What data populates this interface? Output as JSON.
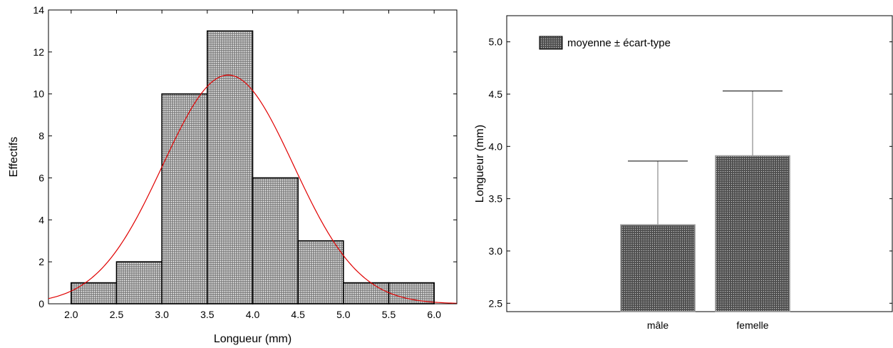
{
  "chart_data": [
    {
      "type": "bar",
      "xlabel": "Longueur (mm)",
      "ylabel": "Effectifs",
      "xlim": [
        1.75,
        6.25
      ],
      "ylim": [
        0,
        14
      ],
      "xticks": [
        "2.0",
        "2.5",
        "3.0",
        "3.5",
        "4.0",
        "4.5",
        "5.0",
        "5.5",
        "6.0"
      ],
      "yticks": [
        "0",
        "2",
        "4",
        "6",
        "8",
        "10",
        "12",
        "14"
      ],
      "bins": [
        {
          "from": 2.0,
          "to": 2.5,
          "value": 1
        },
        {
          "from": 2.5,
          "to": 3.0,
          "value": 2
        },
        {
          "from": 3.0,
          "to": 3.5,
          "value": 10
        },
        {
          "from": 3.5,
          "to": 4.0,
          "value": 13
        },
        {
          "from": 4.0,
          "to": 4.5,
          "value": 6
        },
        {
          "from": 4.5,
          "to": 5.0,
          "value": 3
        },
        {
          "from": 5.0,
          "to": 5.5,
          "value": 1
        },
        {
          "from": 5.5,
          "to": 6.0,
          "value": 1
        }
      ],
      "fit_curve": {
        "type": "normal",
        "mean": 3.73,
        "sd": 0.72,
        "peak": 10.9,
        "color": "#e00000"
      },
      "bar_fill": "#8c8c8c",
      "grid": false
    },
    {
      "type": "bar",
      "xlabel": "",
      "ylabel": "Longueur (mm)",
      "ylim": [
        2.42,
        5.25
      ],
      "yticks": [
        "2.5",
        "3.0",
        "3.5",
        "4.0",
        "4.5",
        "5.0"
      ],
      "categories": [
        "mâle",
        "femelle"
      ],
      "values": [
        3.25,
        3.91
      ],
      "error_plus": [
        0.61,
        0.62
      ],
      "legend": {
        "label": "moyenne ± écart-type",
        "placement": "top-left"
      },
      "bar_fill": "#5a5a5a",
      "grid": false
    }
  ]
}
